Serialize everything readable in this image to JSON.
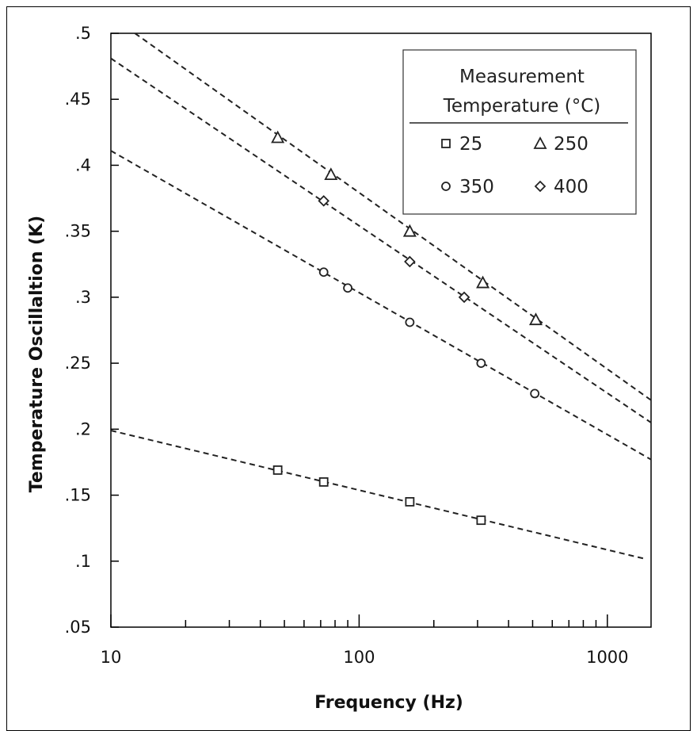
{
  "chart_data": {
    "type": "scatter",
    "title": "",
    "xlabel": "Frequency (Hz)",
    "ylabel": "Temperature Oscillaltion (K)",
    "x_scale": "log",
    "xlim": [
      10,
      1500
    ],
    "ylim": [
      0.05,
      0.5
    ],
    "x_tick_labels": [
      {
        "value": 10,
        "label": "10"
      },
      {
        "value": 100,
        "label": "100"
      },
      {
        "value": 1000,
        "label": "1000"
      }
    ],
    "y_tick_labels": [
      {
        "value": 0.05,
        "label": ".05"
      },
      {
        "value": 0.1,
        "label": ".1"
      },
      {
        "value": 0.15,
        "label": ".15"
      },
      {
        "value": 0.2,
        "label": ".2"
      },
      {
        "value": 0.25,
        "label": ".25"
      },
      {
        "value": 0.3,
        "label": ".3"
      },
      {
        "value": 0.35,
        "label": ".35"
      },
      {
        "value": 0.4,
        "label": ".4"
      },
      {
        "value": 0.45,
        "label": ".45"
      },
      {
        "value": 0.5,
        "label": ".5"
      }
    ],
    "grid": false,
    "legend": {
      "title_line1": "Measurement",
      "title_line2": "Temperature (°C)",
      "placement": "top-right"
    },
    "series": [
      {
        "name": "25",
        "marker": "square",
        "points": [
          [
            47,
            0.169
          ],
          [
            72,
            0.16
          ],
          [
            160,
            0.145
          ],
          [
            310,
            0.131
          ]
        ],
        "fit": [
          [
            10,
            0.199
          ],
          [
            1400,
            0.102
          ]
        ]
      },
      {
        "name": "250",
        "marker": "triangle",
        "points": [
          [
            47,
            0.421
          ],
          [
            77,
            0.393
          ],
          [
            160,
            0.35
          ],
          [
            315,
            0.311
          ],
          [
            515,
            0.283
          ]
        ],
        "fit": [
          [
            12.5,
            0.5
          ],
          [
            1500,
            0.222
          ]
        ]
      },
      {
        "name": "350",
        "marker": "circle",
        "points": [
          [
            72,
            0.319
          ],
          [
            90,
            0.307
          ],
          [
            160,
            0.281
          ],
          [
            310,
            0.25
          ],
          [
            510,
            0.227
          ]
        ],
        "fit": [
          [
            10,
            0.411
          ],
          [
            1500,
            0.177
          ]
        ]
      },
      {
        "name": "400",
        "marker": "diamond",
        "points": [
          [
            72,
            0.373
          ],
          [
            160,
            0.327
          ],
          [
            265,
            0.3
          ]
        ],
        "fit": [
          [
            10,
            0.481
          ],
          [
            1500,
            0.205
          ]
        ]
      }
    ]
  }
}
